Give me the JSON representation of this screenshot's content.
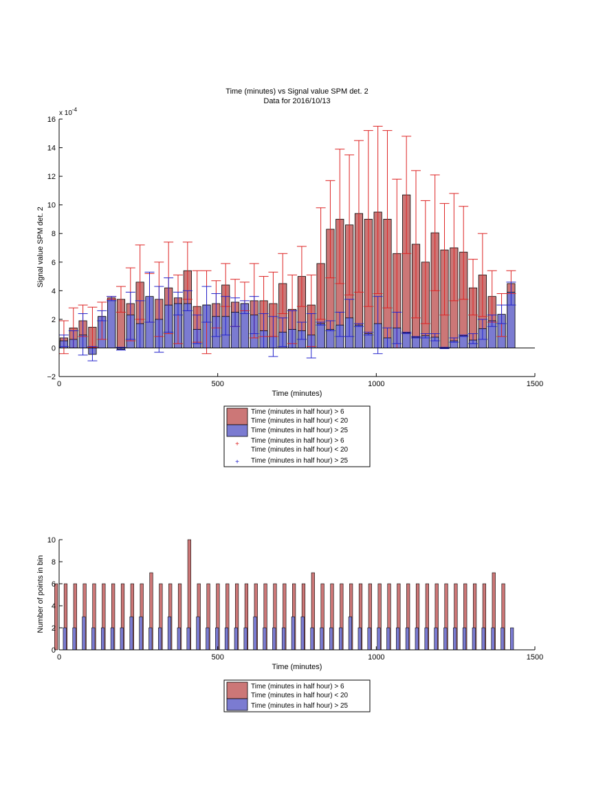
{
  "colors": {
    "red_fill": "#cc7777",
    "blue_fill": "#7b7bd1",
    "red_err": "#dd2222",
    "blue_err": "#2222cc",
    "axis": "#000000"
  },
  "chart_data": [
    {
      "type": "bar",
      "title": "Time (minutes) vs Signal value SPM det. 2",
      "subtitle": "Data for 2016/10/13",
      "xlabel": "Time (minutes)",
      "ylabel": "Signal value SPM det. 2",
      "y_exponent_label": "x 10",
      "y_exponent_power": "-4",
      "xlim": [
        0,
        1500
      ],
      "ylim": [
        -2,
        16
      ],
      "xticks": [
        "0",
        "500",
        "1000",
        "1500"
      ],
      "yticks": [
        "−2",
        "0",
        "2",
        "4",
        "6",
        "8",
        "10",
        "12",
        "14",
        "16"
      ],
      "bin_width_minutes": 30,
      "x": [
        15,
        45,
        75,
        105,
        135,
        165,
        195,
        225,
        255,
        285,
        315,
        345,
        375,
        405,
        435,
        465,
        495,
        525,
        555,
        585,
        615,
        645,
        675,
        705,
        735,
        765,
        795,
        825,
        855,
        885,
        915,
        945,
        975,
        1005,
        1035,
        1065,
        1095,
        1125,
        1155,
        1185,
        1215,
        1245,
        1275,
        1305,
        1335,
        1365,
        1395,
        1425
      ],
      "series": [
        {
          "name": "Time (minutes in half hour) > 6",
          "name_line2": "Time (minutes in half hour) < 20",
          "values": [
            0.7,
            1.4,
            1.9,
            1.45,
            2.2,
            3.5,
            3.4,
            3.1,
            4.6,
            3.5,
            3.4,
            4.2,
            3.5,
            5.4,
            2.9,
            3.0,
            3.1,
            4.4,
            3.2,
            3.1,
            3.3,
            3.3,
            3.1,
            4.5,
            2.7,
            5.0,
            3.0,
            5.9,
            8.3,
            9.0,
            8.6,
            9.4,
            9.0,
            9.5,
            9.0,
            6.6,
            10.7,
            7.25,
            6.0,
            8.05,
            6.85,
            7.0,
            6.7,
            4.2,
            5.1,
            3.6,
            2.3,
            4.5
          ],
          "error_low": [
            -0.4,
            0.0,
            0.8,
            0.05,
            0.6,
            3.4,
            2.5,
            0.5,
            2.0,
            1.8,
            0.8,
            1.0,
            0.3,
            3.4,
            0.4,
            -0.4,
            1.4,
            2.9,
            1.5,
            2.6,
            0.7,
            0.8,
            0.8,
            2.4,
            0.3,
            2.9,
            0.1,
            2.0,
            4.9,
            4.5,
            3.7,
            3.9,
            2.9,
            3.8,
            2.8,
            0.0,
            6.6,
            2.1,
            1.7,
            4.0,
            2.3,
            3.3,
            3.4,
            2.3,
            2.2,
            1.8,
            0.8,
            3.8
          ],
          "error_high": [
            1.9,
            2.8,
            3.0,
            2.85,
            3.2,
            3.6,
            4.3,
            5.6,
            7.2,
            5.2,
            6.0,
            7.4,
            5.1,
            7.4,
            5.4,
            5.4,
            4.7,
            5.9,
            4.8,
            4.6,
            5.9,
            5.0,
            5.3,
            6.6,
            5.1,
            7.1,
            5.1,
            9.8,
            11.7,
            13.9,
            13.5,
            14.5,
            15.2,
            15.5,
            15.2,
            11.8,
            14.8,
            12.4,
            10.3,
            12.1,
            10.1,
            10.8,
            9.9,
            6.2,
            8.0,
            5.4,
            3.8,
            5.4
          ]
        },
        {
          "name": "Time (minutes in half hour) > 25",
          "values": [
            0.5,
            0.6,
            0.9,
            -0.45,
            2.2,
            3.4,
            -0.1,
            2.3,
            1.7,
            3.6,
            2.0,
            3.0,
            3.1,
            3.1,
            1.3,
            3.0,
            2.2,
            2.2,
            2.5,
            3.1,
            2.3,
            1.2,
            0.8,
            1.1,
            1.3,
            1.2,
            0.9,
            1.7,
            1.3,
            1.6,
            2.1,
            1.6,
            1.0,
            1.7,
            0.7,
            1.4,
            1.05,
            0.75,
            0.85,
            0.75,
            0.0,
            0.5,
            0.85,
            0.55,
            1.35,
            1.9,
            2.35,
            3.9
          ],
          "error_low": [
            0.1,
            0.0,
            -0.5,
            -0.9,
            1.9,
            3.3,
            -0.15,
            0.6,
            0.0,
            1.8,
            -0.3,
            1.1,
            2.3,
            2.6,
            0.3,
            1.8,
            0.8,
            0.9,
            1.5,
            2.4,
            1.0,
            0.0,
            -0.6,
            0.1,
            0.0,
            0.6,
            -0.7,
            1.6,
            1.2,
            0.8,
            0.8,
            1.5,
            0.9,
            -0.4,
            0.0,
            0.3,
            1.0,
            0.7,
            0.7,
            0.5,
            -0.05,
            0.4,
            0.8,
            0.3,
            0.6,
            1.5,
            1.7,
            3.0
          ],
          "error_high": [
            0.9,
            1.2,
            2.4,
            0.1,
            2.6,
            3.6,
            0.05,
            3.9,
            3.3,
            5.3,
            4.3,
            4.9,
            3.9,
            4.0,
            2.3,
            4.3,
            3.8,
            3.6,
            3.5,
            3.3,
            3.6,
            2.4,
            2.2,
            2.1,
            2.6,
            1.8,
            2.4,
            1.8,
            1.9,
            2.5,
            3.4,
            1.7,
            1.1,
            3.6,
            1.4,
            2.5,
            1.1,
            0.8,
            1.0,
            1.0,
            0.05,
            0.7,
            0.9,
            1.0,
            2.0,
            2.3,
            3.0,
            4.6
          ]
        }
      ],
      "legend": {
        "placement": "below",
        "entries": [
          {
            "kind": "patch",
            "color": "red",
            "line1": "Time (minutes in half hour) > 6",
            "line2": "Time (minutes in half hour) < 20"
          },
          {
            "kind": "patch",
            "color": "blue",
            "line1": "Time (minutes in half hour) > 25"
          },
          {
            "kind": "marker",
            "color": "red",
            "line1": "Time (minutes in half hour) > 6",
            "line2": "Time (minutes in half hour) < 20"
          },
          {
            "kind": "marker",
            "color": "blue",
            "line1": "Time (minutes in half hour) > 25"
          }
        ]
      }
    },
    {
      "type": "bar",
      "title": "",
      "xlabel": "Time (minutes)",
      "ylabel": "Number of points in bin",
      "xlim": [
        0,
        1500
      ],
      "ylim": [
        0,
        10
      ],
      "xticks": [
        "0",
        "500",
        "1000",
        "1500"
      ],
      "yticks": [
        "0",
        "2",
        "4",
        "6",
        "8",
        "10"
      ],
      "x": [
        15,
        45,
        75,
        105,
        135,
        165,
        195,
        225,
        255,
        285,
        315,
        345,
        375,
        405,
        435,
        465,
        495,
        525,
        555,
        585,
        615,
        645,
        675,
        705,
        735,
        765,
        795,
        825,
        855,
        885,
        915,
        945,
        975,
        1005,
        1035,
        1065,
        1095,
        1125,
        1155,
        1185,
        1215,
        1245,
        1275,
        1305,
        1335,
        1365,
        1395,
        1425
      ],
      "series": [
        {
          "name": "Time (minutes in half hour) > 6",
          "name_line2": "Time (minutes in half hour) < 20",
          "values": [
            6,
            6,
            6,
            6,
            6,
            6,
            6,
            6,
            6,
            6,
            7,
            6,
            6,
            6,
            10,
            6,
            6,
            6,
            6,
            6,
            6,
            6,
            6,
            6,
            6,
            6,
            6,
            7,
            6,
            6,
            6,
            6,
            6,
            6,
            6,
            6,
            6,
            6,
            6,
            6,
            6,
            6,
            6,
            6,
            6,
            6,
            7,
            6
          ]
        },
        {
          "name": "Time (minutes in half hour) > 25",
          "values": [
            2,
            2,
            3,
            2,
            2,
            2,
            2,
            3,
            3,
            2,
            2,
            3,
            2,
            2,
            3,
            2,
            2,
            2,
            2,
            2,
            3,
            2,
            2,
            2,
            3,
            3,
            2,
            2,
            2,
            2,
            3,
            2,
            2,
            2,
            2,
            2,
            2,
            2,
            2,
            2,
            2,
            2,
            2,
            2,
            2,
            2,
            2,
            2
          ]
        }
      ],
      "legend": {
        "placement": "below",
        "entries": [
          {
            "kind": "patch",
            "color": "red",
            "line1": "Time (minutes in half hour) > 6",
            "line2": "Time (minutes in half hour) < 20"
          },
          {
            "kind": "patch",
            "color": "blue",
            "line1": "Time (minutes in half hour) > 25"
          }
        ]
      }
    }
  ]
}
